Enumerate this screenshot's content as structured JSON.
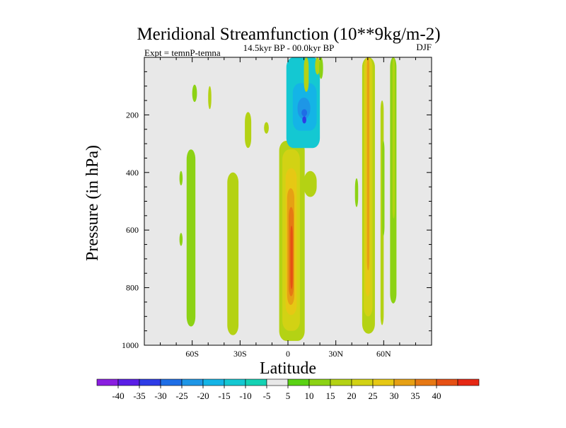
{
  "chart_data": {
    "type": "heatmap",
    "title": "Meridional Streamfunction (10**9kg/m-2)",
    "subtitle": "14.5kyr BP - 00.0kyr BP",
    "left_label": "Expt = temnP-temna",
    "right_label": "DJF",
    "xlabel": "Latitude",
    "ylabel": "Pressure (in hPa)",
    "xlim": [
      -90,
      90
    ],
    "ylim": [
      1000,
      0
    ],
    "x_ticks": [
      {
        "value": -60,
        "label": "60S"
      },
      {
        "value": -30,
        "label": "30S"
      },
      {
        "value": 0,
        "label": "0"
      },
      {
        "value": 30,
        "label": "30N"
      },
      {
        "value": 60,
        "label": "60N"
      }
    ],
    "y_ticks": [
      {
        "value": 200,
        "label": "200"
      },
      {
        "value": 400,
        "label": "400"
      },
      {
        "value": 600,
        "label": "600"
      },
      {
        "value": 800,
        "label": "800"
      },
      {
        "value": 1000,
        "label": "1000"
      }
    ],
    "colorbar": {
      "colors": [
        "#8a1ee0",
        "#5a1ee6",
        "#2e3ce6",
        "#1e6ee6",
        "#1e96e6",
        "#14b4e6",
        "#14c8d2",
        "#14d2b4",
        "#e8e8e8",
        "#5ad214",
        "#8cd214",
        "#b4d214",
        "#d2d214",
        "#e6c814",
        "#e6a014",
        "#e67814",
        "#e65014",
        "#e62814"
      ],
      "labels": [
        "-40",
        "-35",
        "-30",
        "-25",
        "-20",
        "-15",
        "-10",
        "-5",
        "5",
        "10",
        "15",
        "20",
        "25",
        "30",
        "35",
        "40"
      ]
    },
    "regions": [
      {
        "lat": [
          -63.5,
          -58
        ],
        "p": [
          320,
          935
        ],
        "level": 2
      },
      {
        "lat": [
          -60,
          -57
        ],
        "p": [
          95,
          155
        ],
        "level": 2
      },
      {
        "lat": [
          -68,
          -66
        ],
        "p": [
          395,
          445
        ],
        "level": 2
      },
      {
        "lat": [
          -68,
          -66
        ],
        "p": [
          610,
          655
        ],
        "level": 2
      },
      {
        "lat": [
          -38,
          -31
        ],
        "p": [
          400,
          965
        ],
        "level": 3
      },
      {
        "lat": [
          -27,
          -23
        ],
        "p": [
          190,
          315
        ],
        "level": 3
      },
      {
        "lat": [
          -15,
          -12
        ],
        "p": [
          225,
          265
        ],
        "level": 3
      },
      {
        "lat": [
          -50,
          -48
        ],
        "p": [
          100,
          180
        ],
        "level": 3
      },
      {
        "lat": [
          -5.5,
          10.5
        ],
        "p": [
          290,
          985
        ],
        "level": 3
      },
      {
        "lat": [
          -3.5,
          7.5
        ],
        "p": [
          320,
          950
        ],
        "level": 4
      },
      {
        "lat": [
          -1.5,
          5.5
        ],
        "p": [
          385,
          895
        ],
        "level": 5
      },
      {
        "lat": [
          -0.5,
          4
        ],
        "p": [
          455,
          860
        ],
        "level": 6
      },
      {
        "lat": [
          0.5,
          3.5
        ],
        "p": [
          520,
          830
        ],
        "level": 7
      },
      {
        "lat": [
          1.5,
          3
        ],
        "p": [
          585,
          805
        ],
        "level": 8
      },
      {
        "lat": [
          10,
          18
        ],
        "p": [
          395,
          485
        ],
        "level": 3
      },
      {
        "lat": [
          -1,
          20
        ],
        "p": [
          0,
          315
        ],
        "level": -2
      },
      {
        "lat": [
          3,
          18
        ],
        "p": [
          90,
          255
        ],
        "level": -3
      },
      {
        "lat": [
          6,
          14
        ],
        "p": [
          140,
          215
        ],
        "level": -4
      },
      {
        "lat": [
          8.5,
          12
        ],
        "p": [
          180,
          205
        ],
        "level": -5
      },
      {
        "lat": [
          9,
          11.5
        ],
        "p": [
          205,
          230
        ],
        "level": -6
      },
      {
        "lat": [
          10,
          13
        ],
        "p": [
          0,
          120
        ],
        "level": 3
      },
      {
        "lat": [
          17,
          20
        ],
        "p": [
          0,
          60
        ],
        "level": 3
      },
      {
        "lat": [
          19.5,
          22
        ],
        "p": [
          0,
          75
        ],
        "level": 2
      },
      {
        "lat": [
          42,
          44
        ],
        "p": [
          420,
          520
        ],
        "level": 2
      },
      {
        "lat": [
          46.5,
          54.5
        ],
        "p": [
          0,
          960
        ],
        "level": 3
      },
      {
        "lat": [
          47.5,
          53
        ],
        "p": [
          0,
          900
        ],
        "level": 4
      },
      {
        "lat": [
          48.5,
          51.5
        ],
        "p": [
          0,
          830
        ],
        "level": 5
      },
      {
        "lat": [
          49.5,
          51
        ],
        "p": [
          0,
          740
        ],
        "level": 6
      },
      {
        "lat": [
          58,
          60
        ],
        "p": [
          150,
          930
        ],
        "level": 3
      },
      {
        "lat": [
          59,
          60.5
        ],
        "p": [
          290,
          620
        ],
        "level": 2
      },
      {
        "lat": [
          64,
          68
        ],
        "p": [
          0,
          855
        ],
        "level": 2
      },
      {
        "lat": [
          65.5,
          67
        ],
        "p": [
          0,
          560
        ],
        "level": 3
      }
    ]
  }
}
